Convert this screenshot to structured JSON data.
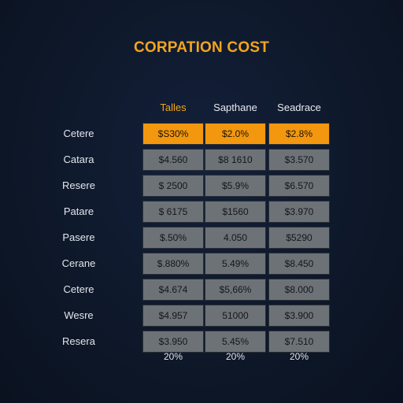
{
  "chart_data": {
    "type": "table",
    "title": "CORPATION COST",
    "columns": [
      "Talles",
      "Sapthane",
      "Seadrace"
    ],
    "rows": [
      {
        "label": "Cetere",
        "values": [
          "$S30%",
          "$2.0%",
          "$2.8%"
        ],
        "highlight": true
      },
      {
        "label": "Catara",
        "values": [
          "$4.560",
          "$8 1610",
          "$3.570"
        ]
      },
      {
        "label": "Resere",
        "values": [
          "$ 2500",
          "$5.9%",
          "$6.570"
        ]
      },
      {
        "label": "Patare",
        "values": [
          "$ 6175",
          "$1560",
          "$3.970"
        ]
      },
      {
        "label": "Pasere",
        "values": [
          "$.50%",
          "4.050",
          "$5290"
        ]
      },
      {
        "label": "Cerane",
        "values": [
          "$.880%",
          "5.49%",
          "$8.450"
        ]
      },
      {
        "label": "Cetere",
        "values": [
          "$4.674",
          "$5,66%",
          "$8.000"
        ]
      },
      {
        "label": "Wesre",
        "values": [
          "$4.957",
          "51000",
          "$3.900"
        ]
      },
      {
        "label": "Resera",
        "values": [
          "$3.950",
          "5.45%",
          "$7.510"
        ]
      }
    ],
    "footer": [
      "20%",
      "20%",
      "20%"
    ],
    "colors": {
      "accent": "#f2a51f",
      "highlight_cell": "#f3970f",
      "cell": "#6d7277",
      "background": "#0e1828"
    }
  }
}
